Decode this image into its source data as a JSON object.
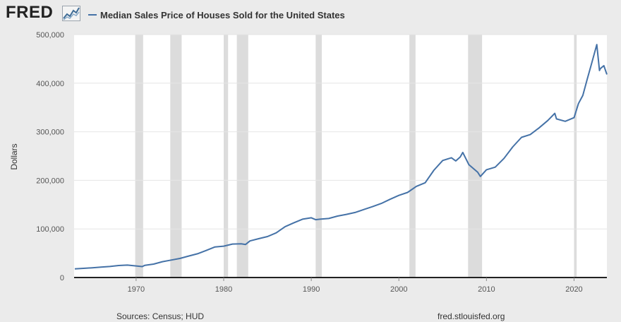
{
  "header": {
    "logo_text": "FRED",
    "logo_icon": "chart-line-icon"
  },
  "footer": {
    "source": "Sources: Census; HUD",
    "url": "fred.stlouisfed.org"
  },
  "colors": {
    "line": "#4572a7",
    "recession": "#dcdcdc",
    "plot_background": "#ffffff",
    "page_background": "#ebebeb",
    "grid": "#e6e6e6"
  },
  "chart_data": {
    "type": "line",
    "title": "",
    "xlabel": "",
    "ylabel": "Dollars",
    "xlim": [
      1962.92,
      2023.75
    ],
    "ylim": [
      0,
      500000
    ],
    "y_ticks": [
      0,
      100000,
      200000,
      300000,
      400000,
      500000
    ],
    "y_tick_labels": [
      "0",
      "100,000",
      "200,000",
      "300,000",
      "400,000",
      "500,000"
    ],
    "x_ticks": [
      1970,
      1980,
      1990,
      2000,
      2010,
      2020
    ],
    "x_tick_labels": [
      "1970",
      "1980",
      "1990",
      "2000",
      "2010",
      "2020"
    ],
    "grid": true,
    "legend": "top-left",
    "recessions": [
      [
        1969.9,
        1970.8
      ],
      [
        1973.9,
        1975.2
      ],
      [
        1980.0,
        1980.5
      ],
      [
        1981.5,
        1982.8
      ],
      [
        1990.5,
        1991.2
      ],
      [
        2001.2,
        2001.9
      ],
      [
        2007.9,
        2009.5
      ],
      [
        2020.0,
        2020.3
      ]
    ],
    "series": [
      {
        "name": "Median Sales Price of Houses Sold for the United States",
        "x": [
          1963,
          1964,
          1965,
          1966,
          1967,
          1968,
          1969,
          1970,
          1970.7,
          1971,
          1972,
          1973,
          1974,
          1975,
          1976,
          1977,
          1978,
          1979,
          1980,
          1981,
          1982,
          1982.5,
          1983,
          1984,
          1985,
          1986,
          1987,
          1988,
          1989,
          1990,
          1990.5,
          1991,
          1992,
          1993,
          1994,
          1995,
          1996,
          1997,
          1998,
          1999,
          2000,
          2001,
          2002,
          2003,
          2004,
          2005,
          2006,
          2006.5,
          2007,
          2007.3,
          2008,
          2009,
          2009.3,
          2010,
          2011,
          2012,
          2013,
          2014,
          2015,
          2016,
          2017,
          2017.8,
          2018,
          2019,
          2020,
          2020.5,
          2021,
          2021.5,
          2022,
          2022.6,
          2022.9,
          2023,
          2023.4,
          2023.75
        ],
        "y": [
          17800,
          18900,
          20000,
          21400,
          22700,
          24700,
          25600,
          23900,
          22500,
          25200,
          27600,
          32500,
          35900,
          39300,
          44200,
          48800,
          55700,
          62900,
          64600,
          68900,
          69300,
          68000,
          75300,
          79900,
          84300,
          92000,
          104500,
          112500,
          120000,
          123000,
          119000,
          120000,
          121500,
          126500,
          130000,
          133900,
          140000,
          146000,
          152500,
          161000,
          169000,
          175200,
          187600,
          195000,
          221000,
          240900,
          246500,
          240000,
          247900,
          257400,
          232100,
          216700,
          208000,
          221800,
          227200,
          245200,
          268900,
          288500,
          294200,
          307800,
          323100,
          337900,
          326400,
          321500,
          329000,
          358000,
          374900,
          408000,
          440300,
          479500,
          426000,
          430000,
          436000,
          418000
        ]
      }
    ]
  }
}
